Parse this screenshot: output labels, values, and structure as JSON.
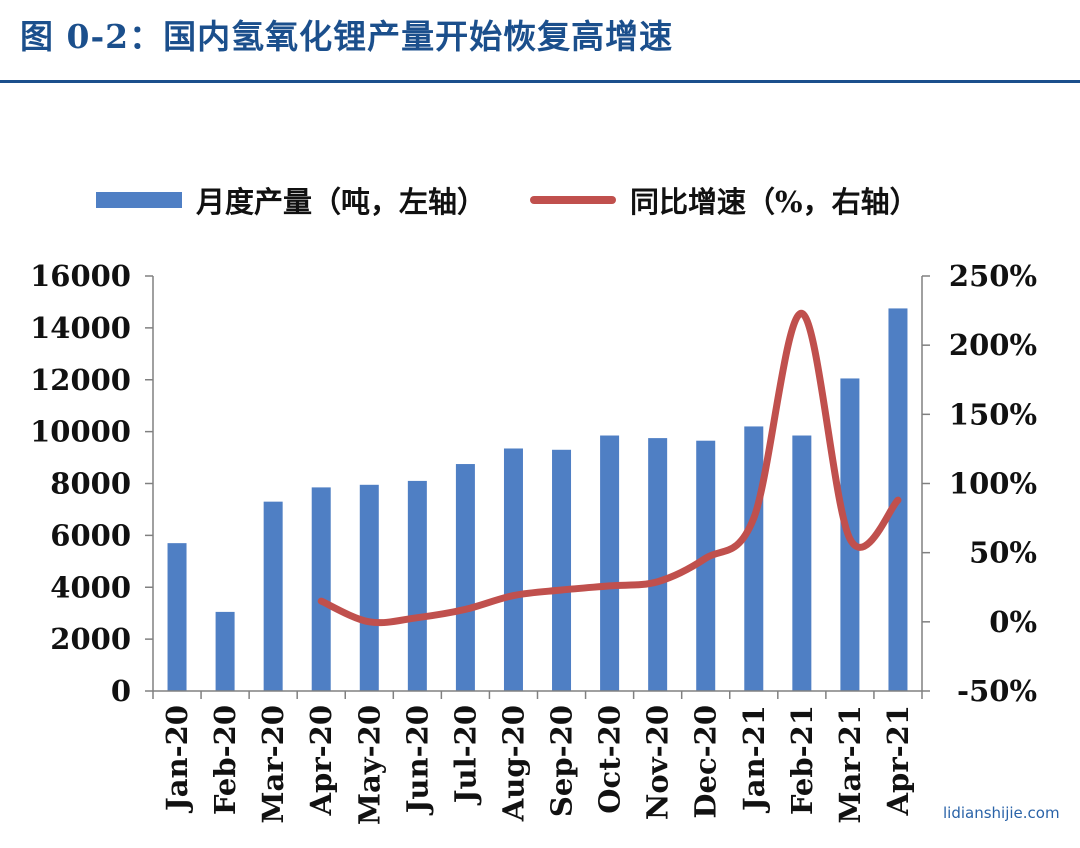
{
  "header": {
    "title": "图 0-2：国内氢氧化锂产量开始恢复高增速"
  },
  "legend": {
    "bar_label": "月度产量（吨，左轴）",
    "line_label": "同比增速（%，右轴）"
  },
  "watermark": "lidianshijie.com",
  "colors": {
    "bars": "#4f7fc4",
    "line": "#c0504d",
    "title": "#1b4f8c",
    "axis": "#808080"
  },
  "chart_data": {
    "type": "bar",
    "categories": [
      "Jan-20",
      "Feb-20",
      "Mar-20",
      "Apr-20",
      "May-20",
      "Jun-20",
      "Jul-20",
      "Aug-20",
      "Sep-20",
      "Oct-20",
      "Nov-20",
      "Dec-20",
      "Jan-21",
      "Feb-21",
      "Mar-21",
      "Apr-21"
    ],
    "series": [
      {
        "name": "月度产量（吨，左轴）",
        "type": "bar",
        "axis": "left",
        "values": [
          5700,
          3050,
          7300,
          7850,
          7950,
          8100,
          8750,
          9350,
          9300,
          9850,
          9750,
          9650,
          10200,
          9850,
          12050,
          14750
        ]
      },
      {
        "name": "同比增速（%，右轴）",
        "type": "line",
        "axis": "right",
        "values": [
          null,
          null,
          null,
          15,
          0,
          3,
          9,
          19,
          23,
          26,
          29,
          46,
          75,
          223,
          60,
          88
        ]
      }
    ],
    "y_left": {
      "ylim": [
        0,
        16000
      ],
      "ticks": [
        "0",
        "2000",
        "4000",
        "6000",
        "8000",
        "10000",
        "12000",
        "14000",
        "16000"
      ]
    },
    "y_right": {
      "ylim": [
        -50,
        250
      ],
      "ticks": [
        "-50%",
        "0%",
        "50%",
        "100%",
        "150%",
        "200%",
        "250%"
      ]
    },
    "grid": false,
    "legend_position": "top"
  }
}
